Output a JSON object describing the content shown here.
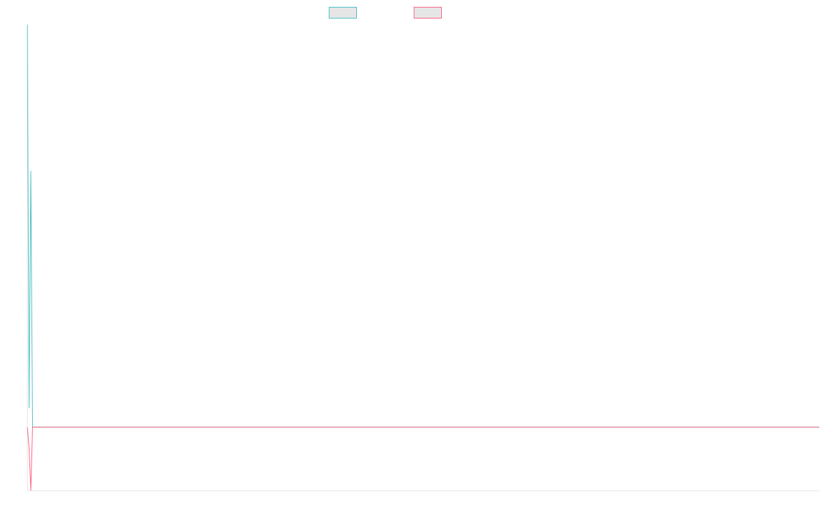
{
  "chart_data": {
    "type": "line",
    "title": "",
    "xlabel": "",
    "ylabel": "",
    "grid": false,
    "legend_position": "top-center",
    "legend_fill": "#e6e6e6",
    "axis_color": "#e3e3e3",
    "xlim": [
      0,
      400
    ],
    "ylim": [
      -30,
      190
    ],
    "series": [
      {
        "color": "#4bc0c0",
        "x": [
          0,
          1,
          2,
          3,
          400
        ],
        "y": [
          190,
          9,
          121,
          0,
          0
        ]
      },
      {
        "color": "#ff6384",
        "x": [
          0,
          1,
          2,
          3,
          400
        ],
        "y": [
          0,
          -10,
          -30,
          0,
          0
        ]
      }
    ]
  }
}
